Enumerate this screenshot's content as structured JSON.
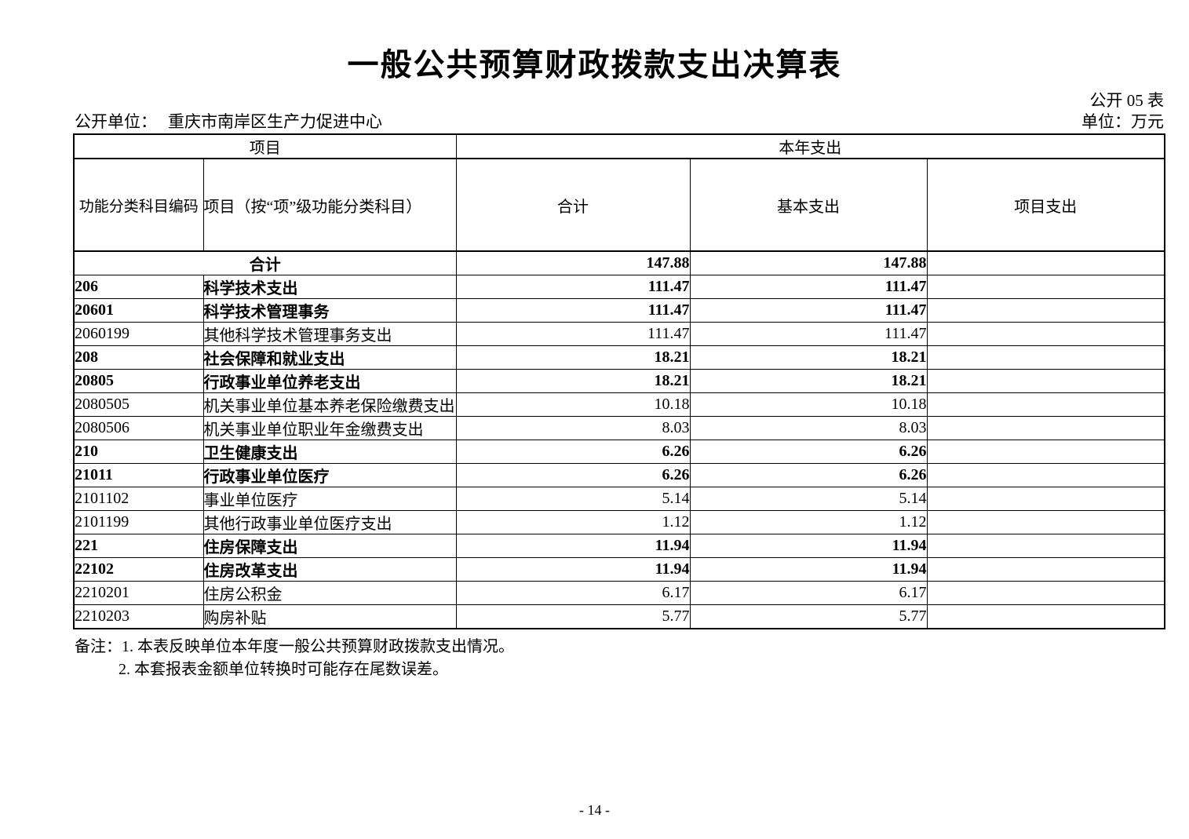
{
  "page": {
    "title": "一般公共预算财政拨款支出决算表",
    "form_label": "公开 05 表",
    "org_label": "公开单位：",
    "org_name": "重庆市南岸区生产力促进中心",
    "unit_label": "单位：万元",
    "page_number": "- 14 -"
  },
  "table": {
    "header": {
      "group_left": "项目",
      "group_right": "本年支出",
      "col_code": "功能分类科目编码",
      "col_item": "项目（按“项”级功能分类科目）",
      "col_total": "合计",
      "col_basic": "基本支出",
      "col_project": "项目支出"
    },
    "rows": [
      {
        "code": "",
        "name": "合计",
        "total": "147.88",
        "basic": "147.88",
        "project": "",
        "emphasis": true,
        "merged": true
      },
      {
        "code": "206",
        "name": "科学技术支出",
        "total": "111.47",
        "basic": "111.47",
        "project": "",
        "emphasis": true,
        "merged": false
      },
      {
        "code": "20601",
        "name": "科学技术管理事务",
        "total": "111.47",
        "basic": "111.47",
        "project": "",
        "emphasis": true,
        "merged": false
      },
      {
        "code": "2060199",
        "name": "其他科学技术管理事务支出",
        "total": "111.47",
        "basic": "111.47",
        "project": "",
        "emphasis": false,
        "merged": false
      },
      {
        "code": "208",
        "name": "社会保障和就业支出",
        "total": "18.21",
        "basic": "18.21",
        "project": "",
        "emphasis": true,
        "merged": false
      },
      {
        "code": "20805",
        "name": "行政事业单位养老支出",
        "total": "18.21",
        "basic": "18.21",
        "project": "",
        "emphasis": true,
        "merged": false
      },
      {
        "code": "2080505",
        "name": "机关事业单位基本养老保险缴费支出",
        "total": "10.18",
        "basic": "10.18",
        "project": "",
        "emphasis": false,
        "merged": false
      },
      {
        "code": "2080506",
        "name": "机关事业单位职业年金缴费支出",
        "total": "8.03",
        "basic": "8.03",
        "project": "",
        "emphasis": false,
        "merged": false
      },
      {
        "code": "210",
        "name": "卫生健康支出",
        "total": "6.26",
        "basic": "6.26",
        "project": "",
        "emphasis": true,
        "merged": false
      },
      {
        "code": "21011",
        "name": "行政事业单位医疗",
        "total": "6.26",
        "basic": "6.26",
        "project": "",
        "emphasis": true,
        "merged": false
      },
      {
        "code": "2101102",
        "name": "事业单位医疗",
        "total": "5.14",
        "basic": "5.14",
        "project": "",
        "emphasis": false,
        "merged": false
      },
      {
        "code": "2101199",
        "name": "其他行政事业单位医疗支出",
        "total": "1.12",
        "basic": "1.12",
        "project": "",
        "emphasis": false,
        "merged": false
      },
      {
        "code": "221",
        "name": "住房保障支出",
        "total": "11.94",
        "basic": "11.94",
        "project": "",
        "emphasis": true,
        "merged": false
      },
      {
        "code": "22102",
        "name": "住房改革支出",
        "total": "11.94",
        "basic": "11.94",
        "project": "",
        "emphasis": true,
        "merged": false
      },
      {
        "code": "2210201",
        "name": "住房公积金",
        "total": "6.17",
        "basic": "6.17",
        "project": "",
        "emphasis": false,
        "merged": false
      },
      {
        "code": "2210203",
        "name": "购房补贴",
        "total": "5.77",
        "basic": "5.77",
        "project": "",
        "emphasis": false,
        "merged": false
      }
    ]
  },
  "notes": {
    "label": "备注：",
    "line1": "1. 本表反映单位本年度一般公共预算财政拨款支出情况。",
    "line2": "2. 本套报表金额单位转换时可能存在尾数误差。"
  }
}
